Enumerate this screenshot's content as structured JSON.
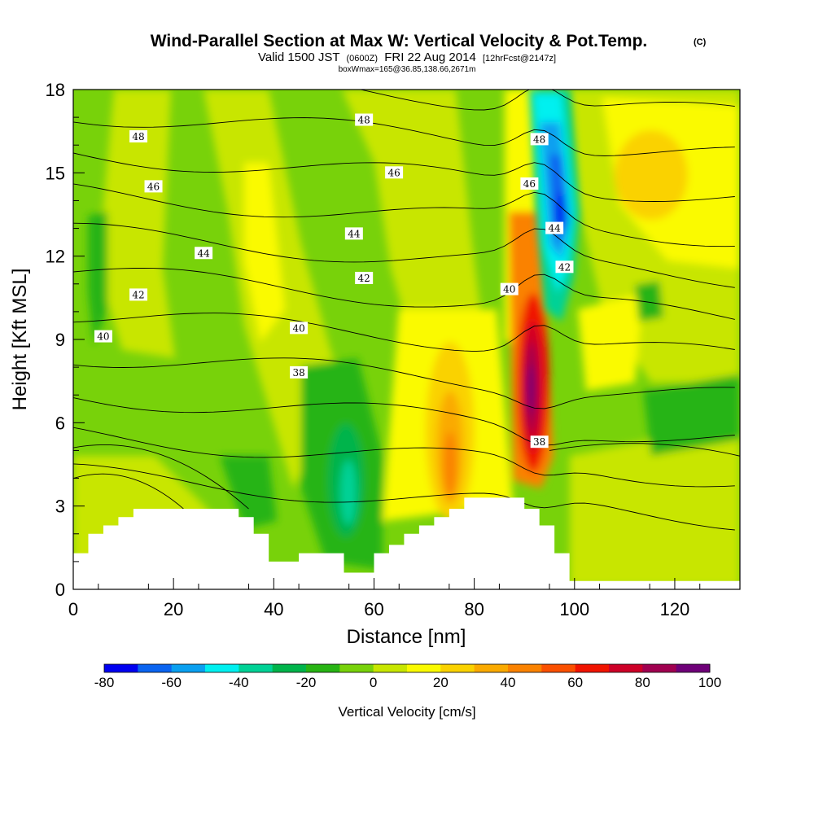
{
  "header": {
    "title": "Wind-Parallel Section at Max W: Vertical Velocity & Pot.Temp.",
    "title_tag": "(C)",
    "valid_a": "Valid 1500 JST",
    "valid_b": "(0600Z)",
    "valid_c": "FRI 22 Aug 2014",
    "valid_d": "[12hrFcst@2147z]",
    "box_line": "boxWmax=165@36.85,138.66,2671m"
  },
  "chart_data": {
    "type": "heatmap",
    "xlabel": "Distance [nm]",
    "ylabel": "Height [Kft MSL]",
    "xlim": [
      0,
      133
    ],
    "ylim": [
      0,
      18
    ],
    "x_ticks": [
      0,
      20,
      40,
      60,
      80,
      100,
      120
    ],
    "y_ticks": [
      0,
      3,
      6,
      9,
      12,
      15,
      18
    ],
    "colorbar": {
      "label": "Vertical Velocity [cm/s]",
      "levels": [
        -80,
        -70,
        -60,
        -50,
        -40,
        -30,
        -20,
        -10,
        0,
        10,
        20,
        30,
        40,
        50,
        60,
        70,
        80,
        90,
        100
      ],
      "tick_labels": [
        "-80",
        "-60",
        "-40",
        "-20",
        "0",
        "20",
        "40",
        "60",
        "80",
        "100"
      ],
      "colors": [
        "#0000f0",
        "#0a64f0",
        "#0aa0f0",
        "#00f0f0",
        "#00d296",
        "#00b44b",
        "#28b414",
        "#78d20a",
        "#c8e600",
        "#fafa00",
        "#fad200",
        "#faaa00",
        "#fa8200",
        "#fa5000",
        "#f01400",
        "#cd0028",
        "#a00050",
        "#6e0078"
      ]
    },
    "velocity_features": [
      {
        "name": "strong updraft core",
        "x": 91,
        "y": 7.5,
        "value": 100
      },
      {
        "name": "updraft column",
        "x": 75,
        "y": 6,
        "value": 40
      },
      {
        "name": "upper downdraft core",
        "x": 97,
        "y": 13.5,
        "value": -80
      },
      {
        "name": "lee downdraft",
        "x": 55,
        "y": 3.5,
        "value": -40
      },
      {
        "name": "upwind downdraft band",
        "x": 5,
        "y": 11.5,
        "value": -20
      }
    ],
    "terrain_profile": {
      "x": [
        0,
        3,
        6,
        9,
        12,
        15,
        18,
        21,
        24,
        27,
        30,
        33,
        36,
        39,
        42,
        45,
        48,
        51,
        54,
        57,
        60,
        63,
        66,
        69,
        72,
        75,
        78,
        81,
        84,
        87,
        90,
        93,
        96,
        99,
        102,
        105,
        108,
        111,
        114,
        117,
        120,
        123,
        126,
        129,
        133
      ],
      "height": [
        1.3,
        2.0,
        2.3,
        2.6,
        2.9,
        2.9,
        2.9,
        2.9,
        2.9,
        2.9,
        2.9,
        2.6,
        2.0,
        1.0,
        1.0,
        1.3,
        1.3,
        1.3,
        0.6,
        0.6,
        1.3,
        1.6,
        2.0,
        2.3,
        2.6,
        2.9,
        3.3,
        3.3,
        3.3,
        3.3,
        2.9,
        2.3,
        1.3,
        0.3,
        0.3,
        0.3,
        0.3,
        0.3,
        0.3,
        0.3,
        0.3,
        0.3,
        0.3,
        0.3,
        0.3
      ]
    },
    "theta_contours": {
      "interval": 1,
      "levels": [
        36,
        37,
        38,
        39,
        40,
        41,
        42,
        43,
        44,
        45,
        46,
        47,
        48,
        49,
        50
      ],
      "labels": [
        {
          "value": "48",
          "x": 13,
          "y": 16.3
        },
        {
          "value": "48",
          "x": 58,
          "y": 16.9
        },
        {
          "value": "48",
          "x": 93,
          "y": 16.2
        },
        {
          "value": "46",
          "x": 16,
          "y": 14.5
        },
        {
          "value": "46",
          "x": 64,
          "y": 15.0
        },
        {
          "value": "46",
          "x": 91,
          "y": 14.6
        },
        {
          "value": "44",
          "x": 26,
          "y": 12.1
        },
        {
          "value": "44",
          "x": 56,
          "y": 12.8
        },
        {
          "value": "44",
          "x": 96,
          "y": 13.0
        },
        {
          "value": "42",
          "x": 13,
          "y": 10.6
        },
        {
          "value": "42",
          "x": 58,
          "y": 11.2
        },
        {
          "value": "42",
          "x": 98,
          "y": 11.6
        },
        {
          "value": "40",
          "x": 6,
          "y": 9.1
        },
        {
          "value": "40",
          "x": 45,
          "y": 9.4
        },
        {
          "value": "40",
          "x": 87,
          "y": 10.8
        },
        {
          "value": "38",
          "x": 45,
          "y": 7.8
        },
        {
          "value": "38",
          "x": 93,
          "y": 5.3
        }
      ]
    }
  }
}
